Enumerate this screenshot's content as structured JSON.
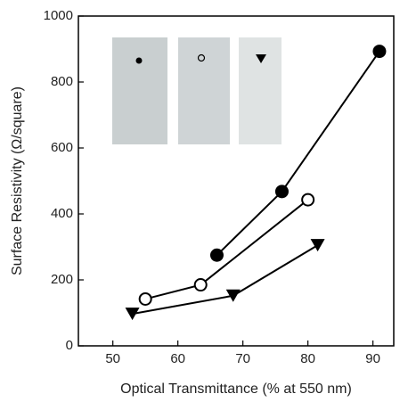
{
  "chart_data": {
    "type": "line",
    "xlabel": "Optical Transmittance (% at 550 nm)",
    "ylabel": "Surface Resistivity (Ω/square)",
    "xlim": [
      44.7,
      93.2
    ],
    "xticks": [
      50,
      60,
      70,
      80,
      90
    ],
    "ylim": [
      0,
      1000
    ],
    "yticks": [
      0,
      200,
      400,
      600,
      800,
      1000
    ],
    "series": [
      {
        "marker": "filled-circle",
        "color": "#000000",
        "x": [
          66,
          76,
          91
        ],
        "values": [
          275,
          468,
          893
        ]
      },
      {
        "marker": "open-circle",
        "color": "#000000",
        "x": [
          55,
          63.5,
          80
        ],
        "values": [
          142,
          185,
          443
        ]
      },
      {
        "marker": "triangle-down",
        "color": "#000000",
        "x": [
          53,
          68.5,
          81.5
        ],
        "values": [
          97,
          152,
          305
        ]
      }
    ]
  }
}
